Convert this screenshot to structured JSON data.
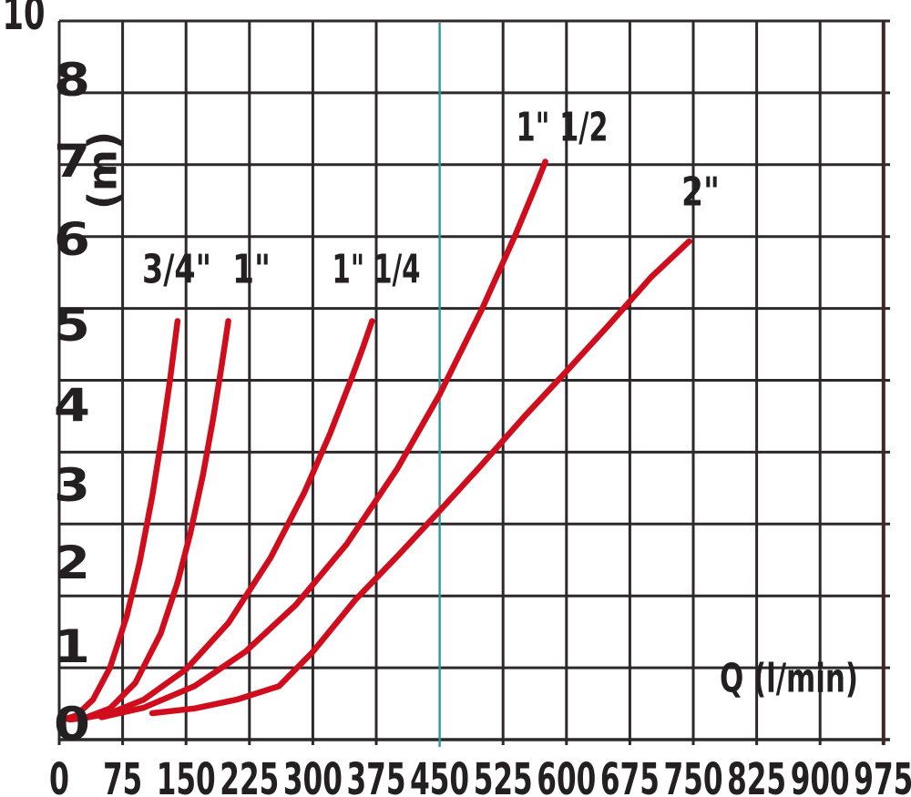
{
  "chart_data": {
    "type": "line",
    "title": "",
    "xlabel": "Q (l/min)",
    "ylabel": "(m)",
    "xlim": [
      0,
      975
    ],
    "ylim": [
      0,
      10
    ],
    "grid": true,
    "legend_position": "none",
    "highlight_line_x": 450,
    "x_tick_labels": [
      "0",
      "75",
      "150",
      "225",
      "300",
      "375",
      "450",
      "525",
      "600",
      "675",
      "750",
      "825",
      "900",
      "975"
    ],
    "y_tick_labels_top_to_bottom": [
      "10",
      "8",
      "7",
      "6",
      "5",
      "4",
      "3",
      "2",
      "1",
      "0"
    ],
    "colors": {
      "curve_red": "#d00d1d",
      "highlight_teal": "#2f9898",
      "grid": "#2d282a",
      "right_border": "#3e2629",
      "text": "#242021",
      "background": "#ffffff"
    },
    "series": [
      {
        "id": "3-4",
        "label": "3/4\"",
        "x_unit": "l/min",
        "y_unit": "m",
        "points": [
          [
            5,
            0
          ],
          [
            20,
            0.05
          ],
          [
            40,
            0.25
          ],
          [
            60,
            0.65
          ],
          [
            80,
            1.3
          ],
          [
            95,
            1.97
          ],
          [
            110,
            2.8
          ],
          [
            122,
            3.59
          ],
          [
            131,
            4.26
          ],
          [
            137,
            4.75
          ],
          [
            140,
            5
          ]
        ]
      },
      {
        "id": "1",
        "label": "1\"",
        "x_unit": "l/min",
        "y_unit": "m",
        "points": [
          [
            12,
            0
          ],
          [
            30,
            0.02
          ],
          [
            60,
            0.14
          ],
          [
            90,
            0.46
          ],
          [
            120,
            1.08
          ],
          [
            140,
            1.72
          ],
          [
            155,
            2.33
          ],
          [
            170,
            3.07
          ],
          [
            182,
            3.77
          ],
          [
            191,
            4.36
          ],
          [
            197,
            4.78
          ],
          [
            200,
            5
          ]
        ]
      },
      {
        "id": "1-1-4",
        "label": "1\" 1/4",
        "x_unit": "l/min",
        "y_unit": "m",
        "points": [
          [
            30,
            0.02
          ],
          [
            60,
            0.08
          ],
          [
            100,
            0.25
          ],
          [
            150,
            0.63
          ],
          [
            200,
            1.21
          ],
          [
            250,
            2.03
          ],
          [
            290,
            2.85
          ],
          [
            320,
            3.58
          ],
          [
            345,
            4.26
          ],
          [
            360,
            4.69
          ],
          [
            370,
            5
          ]
        ]
      },
      {
        "id": "1-1-2",
        "label": "1\" 1/2",
        "x_unit": "l/min",
        "y_unit": "m",
        "points": [
          [
            50,
            0.03
          ],
          [
            100,
            0.15
          ],
          [
            160,
            0.42
          ],
          [
            220,
            0.85
          ],
          [
            280,
            1.44
          ],
          [
            340,
            2.2
          ],
          [
            400,
            3.15
          ],
          [
            450,
            4.08
          ],
          [
            500,
            5.15
          ],
          [
            540,
            6.09
          ],
          [
            565,
            6.73
          ],
          [
            575,
            7
          ]
        ]
      },
      {
        "id": "2",
        "label": "2\"",
        "x_unit": "l/min",
        "y_unit": "m",
        "points": [
          [
            110,
            0.08
          ],
          [
            160,
            0.14
          ],
          [
            210,
            0.25
          ],
          [
            260,
            0.42
          ],
          [
            300,
            0.85
          ],
          [
            350,
            1.5
          ],
          [
            400,
            2.05
          ],
          [
            450,
            2.62
          ],
          [
            500,
            3.2
          ],
          [
            550,
            3.8
          ],
          [
            600,
            4.37
          ],
          [
            650,
            4.95
          ],
          [
            700,
            5.55
          ],
          [
            745,
            6
          ]
        ]
      }
    ]
  }
}
